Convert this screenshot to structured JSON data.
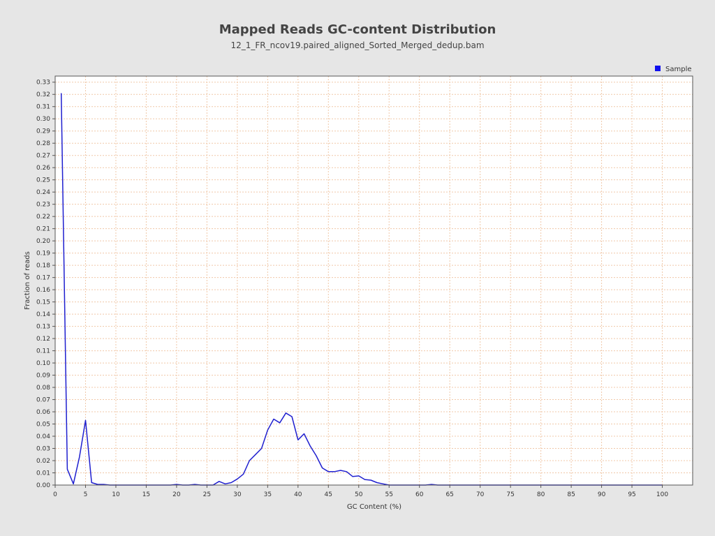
{
  "chart_data": {
    "type": "line",
    "title": "Mapped Reads GC-content Distribution",
    "subtitle": "12_1_FR_ncov19.paired_aligned_Sorted_Merged_dedup.bam",
    "xlabel": "GC Content (%)",
    "ylabel": "Fraction of reads",
    "xlim": [
      0,
      105
    ],
    "ylim": [
      0,
      0.335
    ],
    "xticks": [
      0,
      5,
      10,
      15,
      20,
      25,
      30,
      35,
      40,
      45,
      50,
      55,
      60,
      65,
      70,
      75,
      80,
      85,
      90,
      95,
      100
    ],
    "yticks": [
      0.0,
      0.01,
      0.02,
      0.03,
      0.04,
      0.05,
      0.06,
      0.07,
      0.08,
      0.09,
      0.1,
      0.11,
      0.12,
      0.13,
      0.14,
      0.15,
      0.16,
      0.17,
      0.18,
      0.19,
      0.2,
      0.21,
      0.22,
      0.23,
      0.24,
      0.25,
      0.26,
      0.27,
      0.28,
      0.29,
      0.3,
      0.31,
      0.32,
      0.33
    ],
    "grid": true,
    "legend": {
      "position": "top-right",
      "entries": [
        "Sample"
      ]
    },
    "colors": {
      "background": "#e6e6e6",
      "plot": "#ffffff",
      "grid": "#f0c8a8",
      "line": "#1f1fcf",
      "legend_marker": "#1010ee"
    },
    "series": [
      {
        "name": "Sample",
        "x": [
          1,
          2,
          3,
          4,
          5,
          6,
          7,
          8,
          9,
          10,
          11,
          12,
          13,
          14,
          15,
          16,
          17,
          18,
          19,
          20,
          21,
          22,
          23,
          24,
          25,
          26,
          27,
          28,
          29,
          30,
          31,
          32,
          33,
          34,
          35,
          36,
          37,
          38,
          39,
          40,
          41,
          42,
          43,
          44,
          45,
          46,
          47,
          48,
          49,
          50,
          51,
          52,
          53,
          54,
          55,
          56,
          57,
          58,
          59,
          60,
          61,
          62,
          63,
          64,
          65,
          66,
          67,
          68,
          69,
          70,
          71,
          72,
          73,
          74,
          75,
          76,
          77,
          78,
          79,
          80,
          81,
          82,
          83,
          84,
          85,
          86,
          87,
          88,
          89,
          90,
          91,
          92,
          93,
          94,
          95,
          96,
          97,
          98,
          99,
          100
        ],
        "y": [
          0.321,
          0.013,
          0.001,
          0.023,
          0.053,
          0.002,
          0.0005,
          0.0005,
          0.0,
          0.0,
          0.0,
          0.0,
          0.0,
          0.0,
          0.0,
          0.0,
          0.0,
          0.0,
          0.0,
          0.0005,
          0.0,
          0.0,
          0.0005,
          0.0,
          0.0,
          0.0,
          0.003,
          0.001,
          0.002,
          0.005,
          0.009,
          0.02,
          0.025,
          0.03,
          0.045,
          0.054,
          0.051,
          0.059,
          0.056,
          0.037,
          0.042,
          0.032,
          0.024,
          0.014,
          0.011,
          0.011,
          0.012,
          0.011,
          0.007,
          0.0075,
          0.0045,
          0.004,
          0.002,
          0.001,
          0.0,
          0.0,
          0.0,
          0.0,
          0.0,
          0.0,
          0.0,
          0.0005,
          0.0,
          0.0,
          0.0,
          0.0,
          0.0,
          0.0,
          0.0,
          0.0,
          0.0,
          0.0,
          0.0,
          0.0,
          0.0,
          0.0,
          0.0,
          0.0,
          0.0,
          0.0,
          0.0,
          0.0,
          0.0,
          0.0,
          0.0,
          0.0,
          0.0,
          0.0,
          0.0,
          0.0,
          0.0,
          0.0,
          0.0,
          0.0,
          0.0,
          0.0,
          0.0,
          0.0,
          0.0,
          0.0
        ]
      }
    ]
  }
}
